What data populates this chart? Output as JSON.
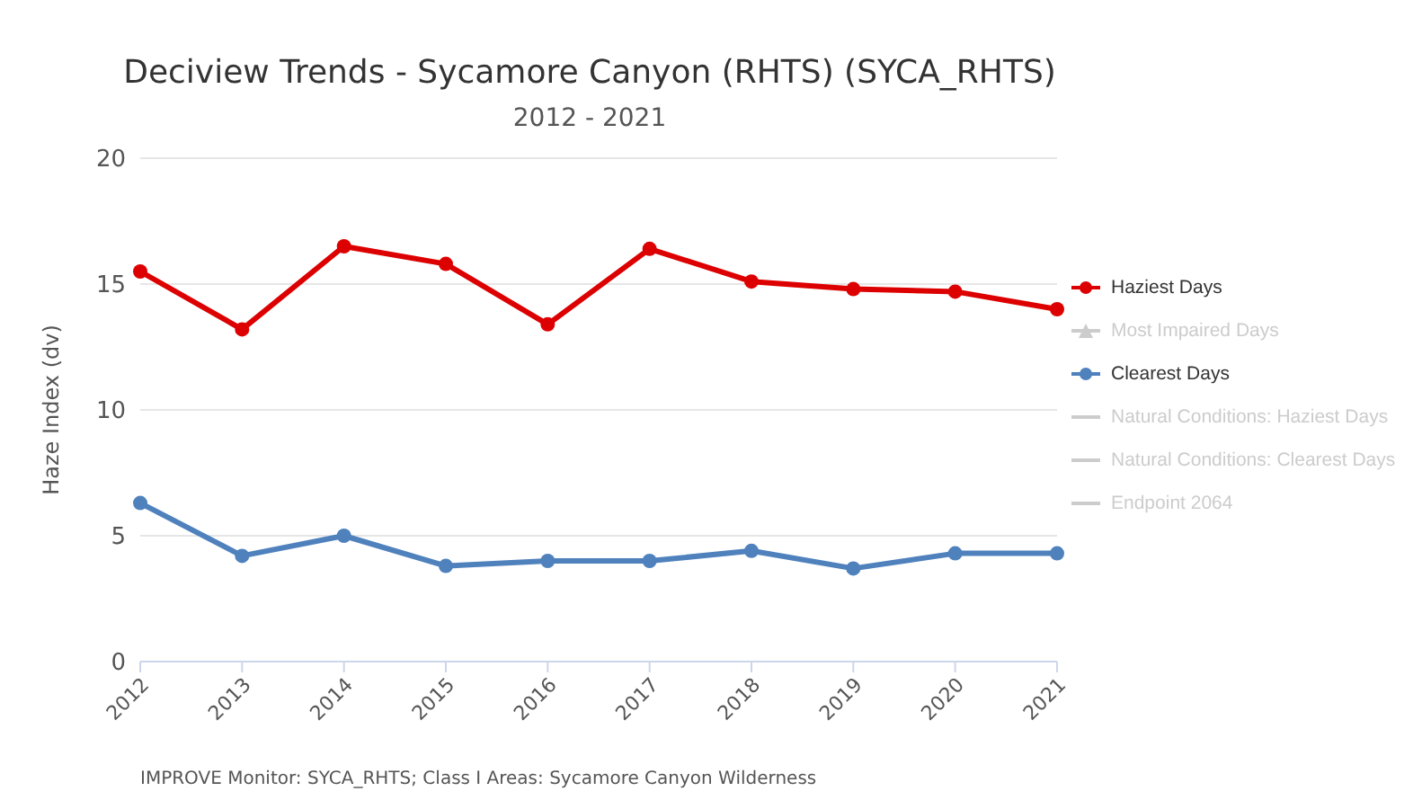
{
  "chart_data": {
    "type": "line",
    "title": "Deciview Trends - Sycamore Canyon (RHTS) (SYCA_RHTS)",
    "subtitle": "2012 - 2021",
    "ylabel": "Haze Index (dv)",
    "categories": [
      "2012",
      "2013",
      "2014",
      "2015",
      "2016",
      "2017",
      "2018",
      "2019",
      "2020",
      "2021"
    ],
    "series": [
      {
        "name": "Haziest Days",
        "color": "#dd0000",
        "marker": "circle",
        "values": [
          15.5,
          13.2,
          16.5,
          15.8,
          13.4,
          16.4,
          15.1,
          14.8,
          14.7,
          14.0
        ]
      },
      {
        "name": "Most Impaired Days",
        "color": "#cccccc",
        "marker": "triangle",
        "values": [
          null,
          null,
          null,
          null,
          null,
          null,
          null,
          null,
          null,
          null
        ]
      },
      {
        "name": "Clearest Days",
        "color": "#4f81bd",
        "marker": "circle",
        "values": [
          6.3,
          4.2,
          5.0,
          3.8,
          4.0,
          4.0,
          4.4,
          3.7,
          4.3,
          4.3
        ]
      },
      {
        "name": "Natural Conditions: Haziest Days",
        "color": "#cccccc",
        "marker": "none",
        "values": [
          null,
          null,
          null,
          null,
          null,
          null,
          null,
          null,
          null,
          null
        ]
      },
      {
        "name": "Natural Conditions: Clearest Days",
        "color": "#cccccc",
        "marker": "none",
        "values": [
          null,
          null,
          null,
          null,
          null,
          null,
          null,
          null,
          null,
          null
        ]
      },
      {
        "name": "Endpoint 2064",
        "color": "#cccccc",
        "marker": "none",
        "values": [
          null,
          null,
          null,
          null,
          null,
          null,
          null,
          null,
          null,
          null
        ]
      }
    ],
    "ylim": [
      0,
      20
    ],
    "yticks": [
      0,
      5,
      10,
      15,
      20
    ],
    "grid": "y",
    "legend": "right",
    "annotations": [
      "IMPROVE Monitor: SYCA_RHTS; Class I Areas: Sycamore Canyon Wilderness"
    ]
  }
}
